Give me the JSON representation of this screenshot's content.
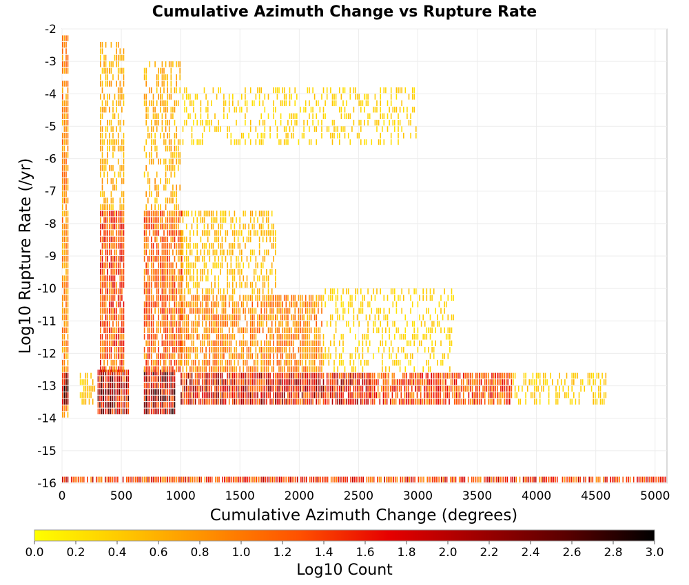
{
  "chart_data": {
    "type": "heatmap",
    "title": "Cumulative Azimuth Change vs Rupture Rate",
    "xlabel": "Cumulative Azimuth Change (degrees)",
    "ylabel": "Log10 Rupture Rate (/yr)",
    "xlim": [
      0,
      5100
    ],
    "ylim": [
      -16,
      -2
    ],
    "x_ticks": [
      "0",
      "500",
      "1000",
      "1500",
      "2000",
      "2500",
      "3000",
      "3500",
      "4000",
      "4500",
      "5000"
    ],
    "y_ticks": [
      "-2",
      "-3",
      "-4",
      "-5",
      "-6",
      "-7",
      "-8",
      "-9",
      "-10",
      "-11",
      "-12",
      "-13",
      "-14",
      "-15",
      "-16"
    ],
    "grid": true,
    "bin_width_x": 15,
    "bin_height_y": 0.2,
    "colorbar": {
      "label": "Log10 Count",
      "range": [
        0.0,
        3.0
      ],
      "ticks": [
        "0.0",
        "0.2",
        "0.4",
        "0.6",
        "0.8",
        "1.0",
        "1.2",
        "1.4",
        "1.6",
        "1.8",
        "2.0",
        "2.2",
        "2.4",
        "2.6",
        "2.8",
        "3.0"
      ],
      "colors": [
        "#ffff00",
        "#ffc800",
        "#ff8c00",
        "#ff5000",
        "#e60000",
        "#a00000",
        "#5a0000",
        "#000000"
      ]
    },
    "clusters": [
      {
        "x": [
          0,
          50
        ],
        "y": [
          -14.0,
          -2.2
        ],
        "density": 0.85,
        "intensity": 0.9
      },
      {
        "x": [
          0,
          50
        ],
        "y": [
          -13.6,
          -12.6
        ],
        "density": 1.0,
        "intensity": 2.1
      },
      {
        "x": [
          150,
          280
        ],
        "y": [
          -13.6,
          -12.6
        ],
        "density": 0.6,
        "intensity": 0.45
      },
      {
        "x": [
          300,
          560
        ],
        "y": [
          -13.9,
          -12.6
        ],
        "density": 1.0,
        "intensity": 1.9
      },
      {
        "x": [
          320,
          520
        ],
        "y": [
          -12.6,
          -7.6
        ],
        "density": 0.9,
        "intensity": 1.3
      },
      {
        "x": [
          320,
          520
        ],
        "y": [
          -7.6,
          -2.4
        ],
        "density": 0.5,
        "intensity": 0.6
      },
      {
        "x": [
          690,
          960
        ],
        "y": [
          -13.9,
          -12.6
        ],
        "density": 1.0,
        "intensity": 2.0
      },
      {
        "x": [
          690,
          1020
        ],
        "y": [
          -12.6,
          -7.6
        ],
        "density": 0.85,
        "intensity": 1.1
      },
      {
        "x": [
          690,
          1000
        ],
        "y": [
          -7.6,
          -3.0
        ],
        "density": 0.45,
        "intensity": 0.6
      },
      {
        "x": [
          1000,
          2600
        ],
        "y": [
          -13.6,
          -12.6
        ],
        "density": 0.95,
        "intensity": 1.7
      },
      {
        "x": [
          1000,
          2200
        ],
        "y": [
          -12.6,
          -10.2
        ],
        "density": 0.75,
        "intensity": 0.9
      },
      {
        "x": [
          1000,
          1800
        ],
        "y": [
          -10.2,
          -7.6
        ],
        "density": 0.5,
        "intensity": 0.5
      },
      {
        "x": [
          1000,
          3000
        ],
        "y": [
          -5.6,
          -3.8
        ],
        "density": 0.3,
        "intensity": 0.35
      },
      {
        "x": [
          2600,
          3800
        ],
        "y": [
          -13.6,
          -12.6
        ],
        "density": 0.85,
        "intensity": 1.3
      },
      {
        "x": [
          3800,
          4600
        ],
        "y": [
          -13.6,
          -12.6
        ],
        "density": 0.45,
        "intensity": 0.4
      },
      {
        "x": [
          2200,
          3300
        ],
        "y": [
          -12.6,
          -10.0
        ],
        "density": 0.3,
        "intensity": 0.35
      },
      {
        "x": [
          0,
          5100
        ],
        "y": [
          -16.0,
          -15.8
        ],
        "density": 0.9,
        "intensity": 1.4
      }
    ]
  }
}
